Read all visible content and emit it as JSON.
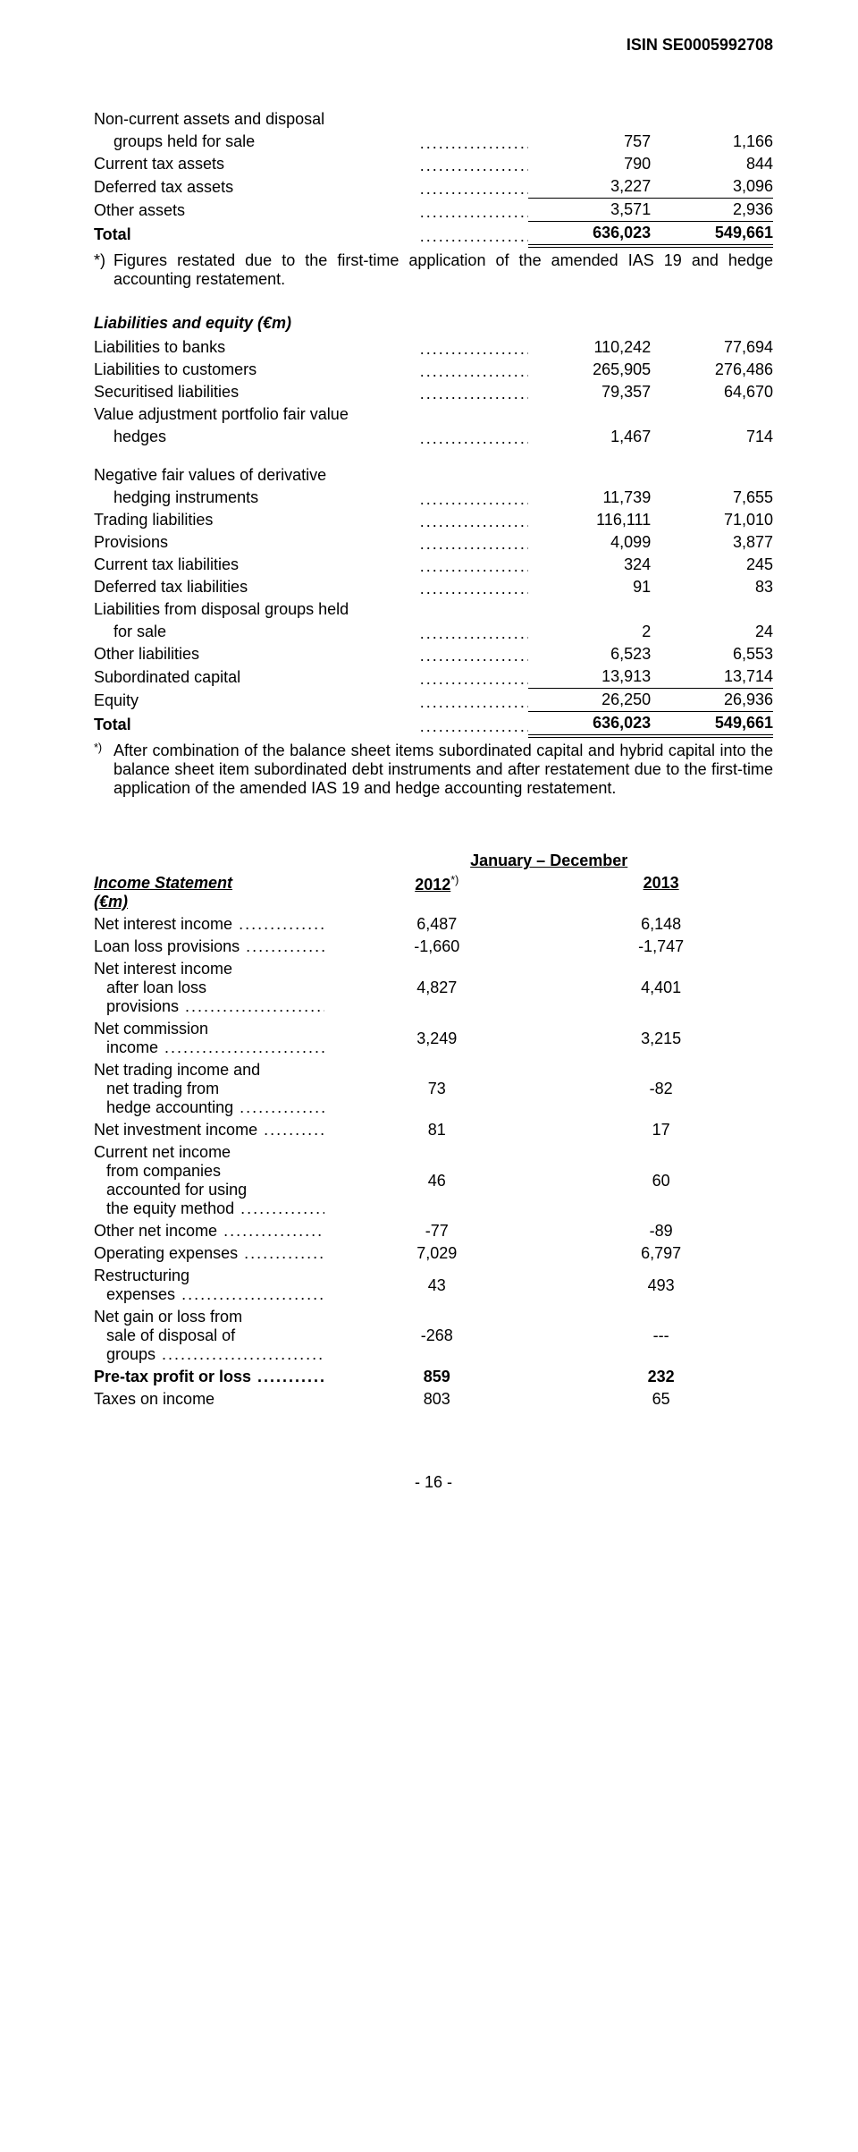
{
  "header": {
    "isin": "ISIN SE0005992708"
  },
  "assets": {
    "rows": [
      {
        "label_lines": [
          "Non-current assets and disposal",
          "groups held for sale"
        ],
        "indent": true,
        "v1": "757",
        "v2": "1,166"
      },
      {
        "label_lines": [
          "Current tax assets"
        ],
        "v1": "790",
        "v2": "844"
      },
      {
        "label_lines": [
          "Deferred tax assets"
        ],
        "v1": "3,227",
        "v2": "3,096"
      },
      {
        "label_lines": [
          "Other assets"
        ],
        "v1": "3,571",
        "v2": "2,936",
        "rule_above": true
      }
    ],
    "total": {
      "label": "Total",
      "v1": "636,023",
      "v2": "549,661"
    }
  },
  "note1": {
    "marker": "*)",
    "text": "Figures restated due to the first-time application of the amended IAS 19 and hedge accounting restatement."
  },
  "liabilities": {
    "heading": "Liabilities and equity (€m)",
    "rows": [
      {
        "label_lines": [
          "Liabilities to banks"
        ],
        "v1": "110,242",
        "v2": "77,694"
      },
      {
        "label_lines": [
          "Liabilities to customers"
        ],
        "v1": "265,905",
        "v2": "276,486"
      },
      {
        "label_lines": [
          "Securitised liabilities"
        ],
        "v1": "79,357",
        "v2": "64,670"
      },
      {
        "label_lines": [
          "Value adjustment portfolio fair value",
          "hedges"
        ],
        "indent": true,
        "v1": "1,467",
        "v2": "714",
        "gap_after": true
      },
      {
        "label_lines": [
          "Negative fair values of derivative",
          "hedging instruments"
        ],
        "indent": true,
        "v1": "11,739",
        "v2": "7,655"
      },
      {
        "label_lines": [
          "Trading liabilities"
        ],
        "v1": "116,111",
        "v2": "71,010"
      },
      {
        "label_lines": [
          "Provisions"
        ],
        "v1": "4,099",
        "v2": "3,877"
      },
      {
        "label_lines": [
          "Current tax liabilities"
        ],
        "v1": "324",
        "v2": "245"
      },
      {
        "label_lines": [
          "Deferred tax liabilities"
        ],
        "v1": "91",
        "v2": "83"
      },
      {
        "label_lines": [
          "Liabilities from disposal groups held",
          "for sale"
        ],
        "indent": true,
        "v1": "2",
        "v2": "24"
      },
      {
        "label_lines": [
          "Other liabilities"
        ],
        "v1": "6,523",
        "v2": "6,553"
      },
      {
        "label_lines": [
          "Subordinated capital"
        ],
        "v1": "13,913",
        "v2": "13,714"
      },
      {
        "label_lines": [
          "Equity"
        ],
        "v1": "26,250",
        "v2": "26,936",
        "rule_above": true
      }
    ],
    "total": {
      "label": "Total",
      "v1": "636,023",
      "v2": "549,661"
    }
  },
  "note2": {
    "marker": "*)",
    "text": "After combination of the balance sheet items subordinated capital and hybrid capital into the balance sheet item subordinated debt instruments and after restatement due to the first-time application of the amended IAS 19 and hedge accounting restatement."
  },
  "income": {
    "period_label": "January – December",
    "year1": "2012",
    "year1_sup": "*)",
    "year2": "2013",
    "heading_lines": [
      "Income Statement",
      "(€m)"
    ],
    "rows": [
      {
        "label_lines": [
          "Net interest income"
        ],
        "v1": "6,487",
        "v2": "6,148",
        "dots": true
      },
      {
        "label_lines": [
          "Loan loss provisions"
        ],
        "v1": "-1,660",
        "v2": "-1,747",
        "dots": true
      },
      {
        "label_lines": [
          "Net interest income",
          "after loan loss",
          "provisions"
        ],
        "v1": "4,827",
        "v2": "4,401",
        "dots": true,
        "indent": true
      },
      {
        "label_lines": [
          "Net commission",
          "income"
        ],
        "v1": "3,249",
        "v2": "3,215",
        "dots": true,
        "indent": true
      },
      {
        "label_lines": [
          "Net trading income and",
          "net trading from",
          "hedge accounting"
        ],
        "v1": "73",
        "v2": "-82",
        "dots": true,
        "indent": true
      },
      {
        "label_lines": [
          "Net investment income"
        ],
        "v1": "81",
        "v2": "17",
        "dots": true
      },
      {
        "label_lines": [
          "Current net income",
          "from companies",
          "accounted for using",
          "the equity method"
        ],
        "v1": "46",
        "v2": "60",
        "dots": true,
        "indent": true
      },
      {
        "label_lines": [
          "Other net income"
        ],
        "v1": "-77",
        "v2": "-89",
        "dots": true
      },
      {
        "label_lines": [
          "Operating expenses"
        ],
        "v1": "7,029",
        "v2": "6,797",
        "dots": true
      },
      {
        "label_lines": [
          "Restructuring",
          "expenses"
        ],
        "v1": "43",
        "v2": "493",
        "dots": true,
        "indent": true
      },
      {
        "label_lines": [
          "Net gain or loss from",
          "sale of disposal of",
          "groups"
        ],
        "v1": "-268",
        "v2": "---",
        "dots": true,
        "indent": true
      },
      {
        "label_lines": [
          "Pre-tax profit or loss"
        ],
        "v1": "859",
        "v2": "232",
        "dots": true,
        "bold": true
      },
      {
        "label_lines": [
          "Taxes on income"
        ],
        "v1": "803",
        "v2": "65"
      }
    ]
  },
  "pagenum": "- 16 -"
}
